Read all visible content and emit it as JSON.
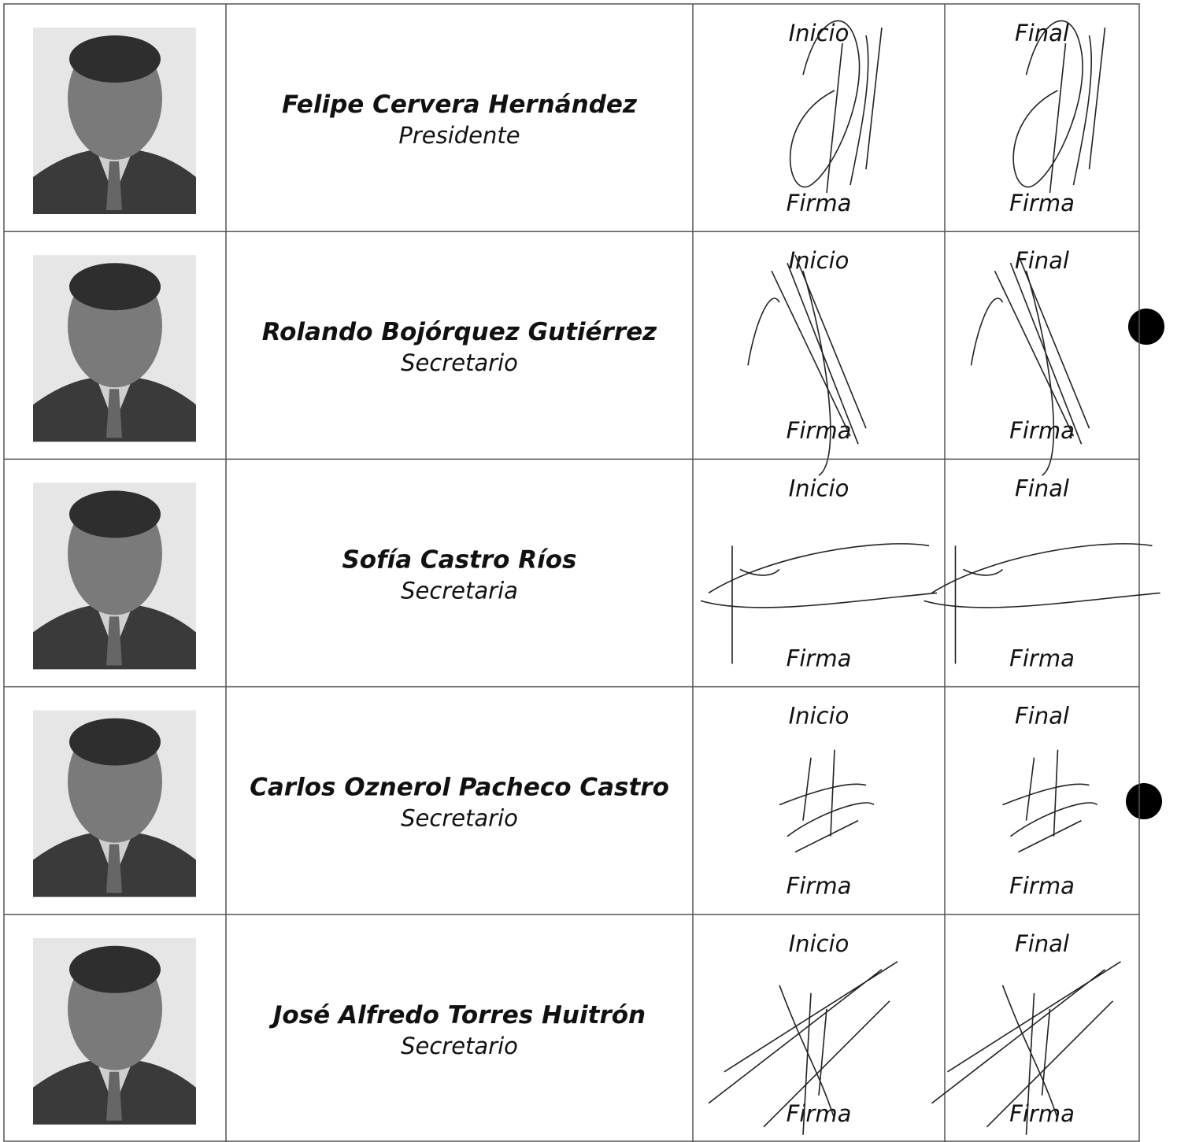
{
  "rows": [
    {
      "name": "Felipe Cervera Hernández",
      "role": "Presidente",
      "start_label": "Inicio",
      "start_signature_label": "Firma",
      "end_label": "Final",
      "end_signature_label": "Firma"
    },
    {
      "name": "Rolando Bojórquez Gutiérrez",
      "role": "Secretario",
      "start_label": "Inicio",
      "start_signature_label": "Firma",
      "end_label": "Final",
      "end_signature_label": "Firma"
    },
    {
      "name": "Sofía Castro Ríos",
      "role": "Secretaria",
      "start_label": "Inicio",
      "start_signature_label": "Firma",
      "end_label": "Final",
      "end_signature_label": "Firma"
    },
    {
      "name": "Carlos Oznerol Pacheco Castro",
      "role": "Secretario",
      "start_label": "Inicio",
      "start_signature_label": "Firma",
      "end_label": "Final",
      "end_signature_label": "Firma"
    },
    {
      "name": "José Alfredo Torres Huitrón",
      "role": "Secretario",
      "start_label": "Inicio",
      "start_signature_label": "Firma",
      "end_label": "Final",
      "end_signature_label": "Firma"
    }
  ]
}
